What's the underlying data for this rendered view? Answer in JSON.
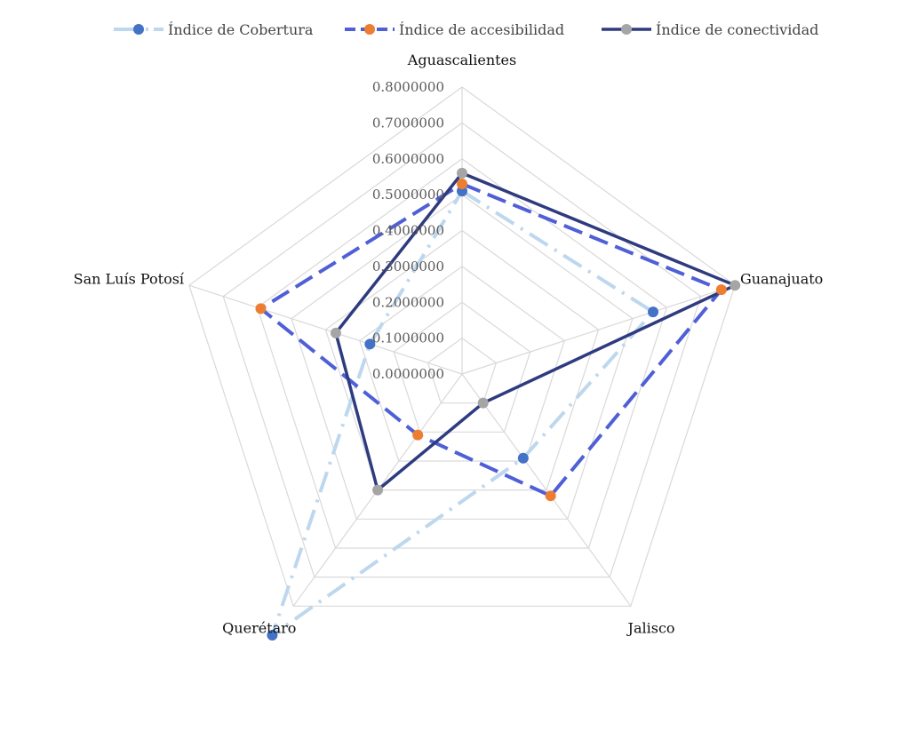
{
  "chart_data": {
    "type": "radar",
    "categories": [
      "Aguascalientes",
      "Guanajuato",
      "Jalisco",
      "Querétaro",
      "San Luís Potosí"
    ],
    "tick_labels": [
      "0.0000000",
      "0.1000000",
      "0.2000000",
      "0.3000000",
      "0.4000000",
      "0.5000000",
      "0.6000000",
      "0.7000000",
      "0.8000000"
    ],
    "rlim": [
      0,
      0.8
    ],
    "grid": true,
    "legend_position": "top",
    "series": [
      {
        "name": "Índice de Cobertura",
        "values": [
          0.51,
          0.56,
          0.29,
          0.9,
          0.27
        ],
        "color": "#bdd7ee",
        "marker_color": "#4472c4",
        "dash": "dash-dot"
      },
      {
        "name": "Índice de accesibilidad",
        "values": [
          0.53,
          0.76,
          0.42,
          0.21,
          0.59
        ],
        "color": "#4f5fd6",
        "marker_color": "#ed7d31",
        "dash": "dash"
      },
      {
        "name": "Índice de conectividad",
        "values": [
          0.56,
          0.8,
          0.1,
          0.4,
          0.37
        ],
        "color": "#2e3b7e",
        "marker_color": "#a5a5a5",
        "dash": "solid"
      }
    ]
  }
}
